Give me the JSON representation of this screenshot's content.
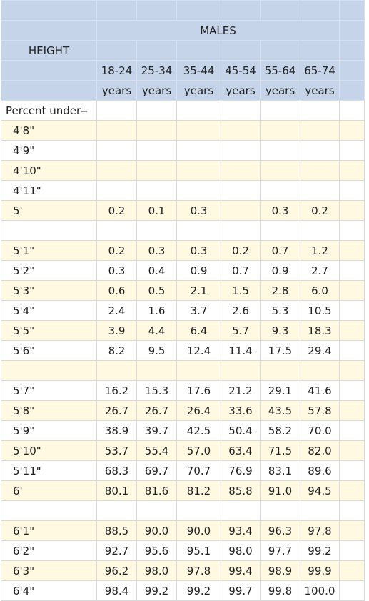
{
  "header": {
    "group": "MALES",
    "row_label": "HEIGHT",
    "columns": [
      {
        "range": "18-24",
        "unit": "years"
      },
      {
        "range": "25-34",
        "unit": "years"
      },
      {
        "range": "35-44",
        "unit": "years"
      },
      {
        "range": "45-54",
        "unit": "years"
      },
      {
        "range": "55-64",
        "unit": "years"
      },
      {
        "range": "65-74",
        "unit": "years"
      }
    ]
  },
  "rows": [
    {
      "label": "Percent under--",
      "values": [
        "",
        "",
        "",
        "",
        "",
        ""
      ]
    },
    {
      "label": "4'8\"",
      "values": [
        "",
        "",
        "",
        "",
        "",
        ""
      ]
    },
    {
      "label": "4'9\"",
      "values": [
        "",
        "",
        "",
        "",
        "",
        ""
      ]
    },
    {
      "label": "4'10\"",
      "values": [
        "",
        "",
        "",
        "",
        "",
        ""
      ]
    },
    {
      "label": "4'11\"",
      "values": [
        "",
        "",
        "",
        "",
        "",
        ""
      ]
    },
    {
      "label": "5'",
      "values": [
        "0.2",
        "0.1",
        "0.3",
        "",
        "0.3",
        "0.2"
      ]
    },
    {
      "label": "",
      "values": [
        "",
        "",
        "",
        "",
        "",
        ""
      ]
    },
    {
      "label": "5'1\"",
      "values": [
        "0.2",
        "0.3",
        "0.3",
        "0.2",
        "0.7",
        "1.2"
      ]
    },
    {
      "label": "5'2\"",
      "values": [
        "0.3",
        "0.4",
        "0.9",
        "0.7",
        "0.9",
        "2.7"
      ]
    },
    {
      "label": "5'3\"",
      "values": [
        "0.6",
        "0.5",
        "2.1",
        "1.5",
        "2.8",
        "6.0"
      ]
    },
    {
      "label": "5'4\"",
      "values": [
        "2.4",
        "1.6",
        "3.7",
        "2.6",
        "5.3",
        "10.5"
      ]
    },
    {
      "label": "5'5\"",
      "values": [
        "3.9",
        "4.4",
        "6.4",
        "5.7",
        "9.3",
        "18.3"
      ]
    },
    {
      "label": "5'6\"",
      "values": [
        "8.2",
        "9.5",
        "12.4",
        "11.4",
        "17.5",
        "29.4"
      ]
    },
    {
      "label": "",
      "values": [
        "",
        "",
        "",
        "",
        "",
        ""
      ]
    },
    {
      "label": "5'7\"",
      "values": [
        "16.2",
        "15.3",
        "17.6",
        "21.2",
        "29.1",
        "41.6"
      ]
    },
    {
      "label": "5'8\"",
      "values": [
        "26.7",
        "26.7",
        "26.4",
        "33.6",
        "43.5",
        "57.8"
      ]
    },
    {
      "label": "5'9\"",
      "values": [
        "38.9",
        "39.7",
        "42.5",
        "50.4",
        "58.2",
        "70.0"
      ]
    },
    {
      "label": "5'10\"",
      "values": [
        "53.7",
        "55.4",
        "57.0",
        "63.4",
        "71.5",
        "82.0"
      ]
    },
    {
      "label": "5'11\"",
      "values": [
        "68.3",
        "69.7",
        "70.7",
        "76.9",
        "83.1",
        "89.6"
      ]
    },
    {
      "label": "6'",
      "values": [
        "80.1",
        "81.6",
        "81.2",
        "85.8",
        "91.0",
        "94.5"
      ]
    },
    {
      "label": "",
      "values": [
        "",
        "",
        "",
        "",
        "",
        ""
      ]
    },
    {
      "label": "6'1\"",
      "values": [
        "88.5",
        "90.0",
        "90.0",
        "93.4",
        "96.3",
        "97.8"
      ]
    },
    {
      "label": "6'2\"",
      "values": [
        "92.7",
        "95.6",
        "95.1",
        "98.0",
        "97.7",
        "99.2"
      ]
    },
    {
      "label": "6'3\"",
      "values": [
        "96.2",
        "98.0",
        "97.8",
        "99.4",
        "98.9",
        "99.9"
      ]
    },
    {
      "label": "6'4\"",
      "values": [
        "98.4",
        "99.2",
        "99.2",
        "99.7",
        "99.8",
        "100.0"
      ]
    }
  ]
}
